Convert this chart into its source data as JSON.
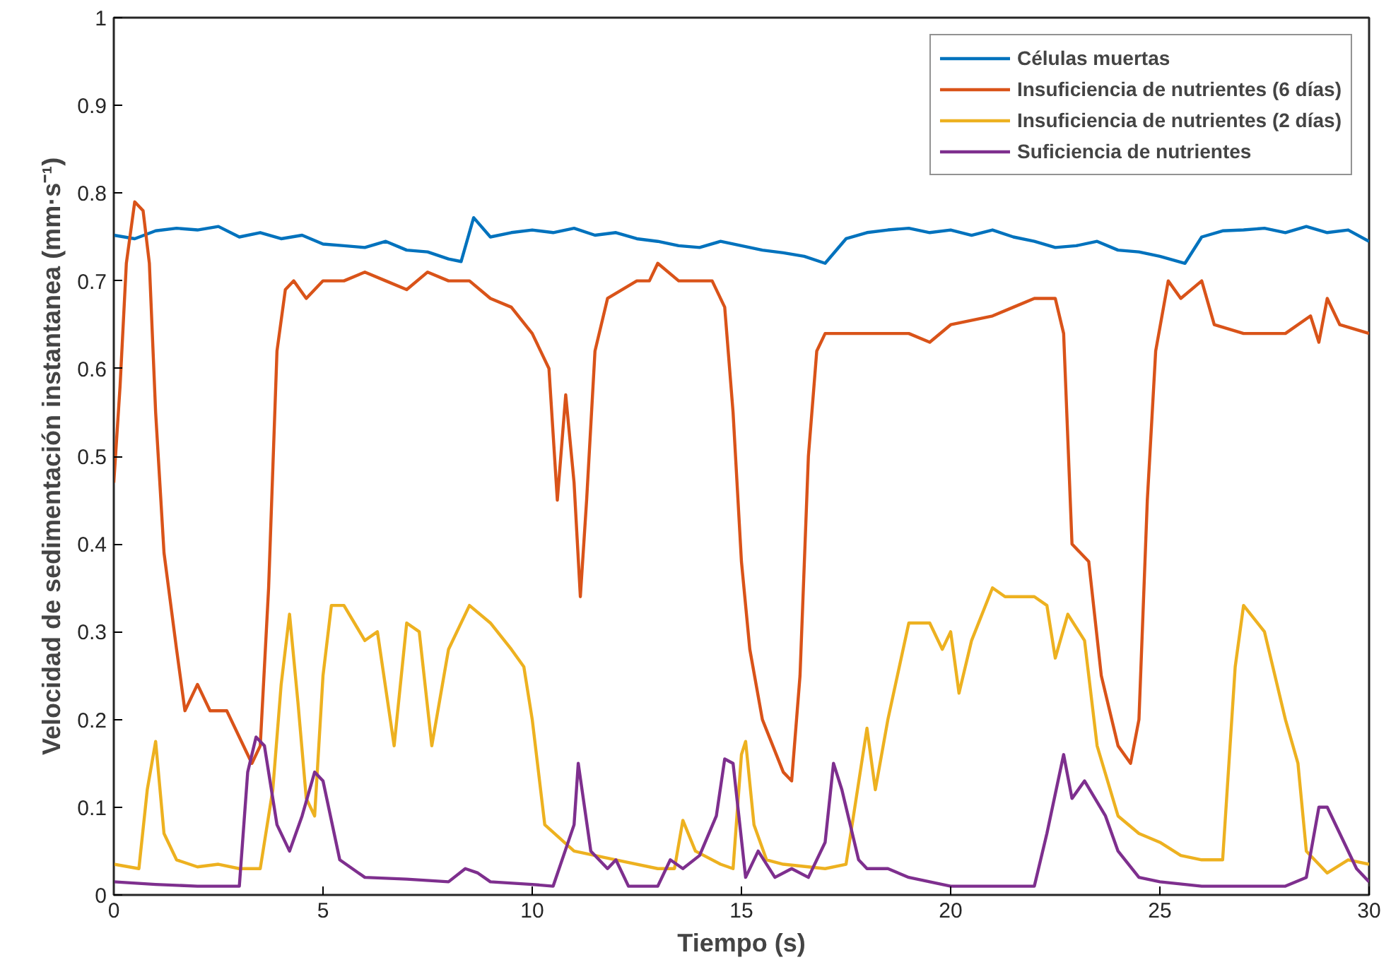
{
  "chart_data": {
    "type": "line",
    "xlabel": "Tiempo (s)",
    "ylabel": "Velocidad de sedimentación instantanea (mm·s⁻¹)",
    "xlim": [
      0,
      30
    ],
    "ylim": [
      0,
      1
    ],
    "xticks": [
      0,
      5,
      10,
      15,
      20,
      25,
      30
    ],
    "yticks": [
      0,
      0.1,
      0.2,
      0.3,
      0.4,
      0.5,
      0.6,
      0.7,
      0.8,
      0.9,
      1
    ],
    "grid": false,
    "legend": "top right",
    "marker": "none",
    "line_style": "solid",
    "series": [
      {
        "name": "Células muertas",
        "color": "#0072bd",
        "x": [
          0,
          0.5,
          1,
          1.5,
          2,
          2.5,
          3,
          3.5,
          4,
          4.5,
          5,
          5.5,
          6,
          6.5,
          7,
          7.5,
          8,
          8.3,
          8.6,
          9,
          9.5,
          10,
          10.5,
          11,
          11.5,
          12,
          12.5,
          13,
          13.5,
          14,
          14.5,
          15,
          15.5,
          16,
          16.5,
          17,
          17.5,
          18,
          18.5,
          19,
          19.5,
          20,
          20.5,
          21,
          21.5,
          22,
          22.5,
          23,
          23.5,
          24,
          24.5,
          25,
          25.6,
          26,
          26.5,
          27,
          27.5,
          28,
          28.5,
          29,
          29.5,
          30
        ],
        "values": [
          0.752,
          0.748,
          0.757,
          0.76,
          0.758,
          0.762,
          0.75,
          0.755,
          0.748,
          0.752,
          0.742,
          0.74,
          0.738,
          0.745,
          0.735,
          0.733,
          0.725,
          0.722,
          0.772,
          0.75,
          0.755,
          0.758,
          0.755,
          0.76,
          0.752,
          0.755,
          0.748,
          0.745,
          0.74,
          0.738,
          0.745,
          0.74,
          0.735,
          0.732,
          0.728,
          0.72,
          0.748,
          0.755,
          0.758,
          0.76,
          0.755,
          0.758,
          0.752,
          0.758,
          0.75,
          0.745,
          0.738,
          0.74,
          0.745,
          0.735,
          0.733,
          0.728,
          0.72,
          0.75,
          0.757,
          0.758,
          0.76,
          0.755,
          0.762,
          0.755,
          0.758,
          0.745
        ]
      },
      {
        "name": "Insuficiencia de nutrientes (6 días)",
        "color": "#d95319",
        "x": [
          0,
          0.15,
          0.3,
          0.5,
          0.7,
          0.85,
          1,
          1.2,
          1.5,
          1.7,
          2,
          2.3,
          2.7,
          3,
          3.3,
          3.5,
          3.7,
          3.9,
          4.1,
          4.3,
          4.6,
          5,
          5.5,
          6,
          6.5,
          7,
          7.5,
          8,
          8.5,
          9,
          9.5,
          10,
          10.4,
          10.6,
          10.8,
          11,
          11.15,
          11.3,
          11.5,
          11.8,
          12.5,
          12.8,
          13,
          13.5,
          14,
          14.3,
          14.6,
          14.8,
          15,
          15.2,
          15.5,
          16,
          16.2,
          16.4,
          16.6,
          16.8,
          17,
          18,
          19,
          19.5,
          20,
          21,
          21.5,
          22,
          22.5,
          22.7,
          22.9,
          23.3,
          23.6,
          24,
          24.3,
          24.5,
          24.7,
          24.9,
          25.2,
          25.5,
          26,
          26.3,
          27,
          28,
          28.6,
          28.8,
          29,
          29.3,
          30
        ],
        "values": [
          0.47,
          0.58,
          0.72,
          0.79,
          0.78,
          0.72,
          0.55,
          0.39,
          0.28,
          0.21,
          0.24,
          0.21,
          0.21,
          0.18,
          0.15,
          0.17,
          0.35,
          0.62,
          0.69,
          0.7,
          0.68,
          0.7,
          0.7,
          0.71,
          0.7,
          0.69,
          0.71,
          0.7,
          0.7,
          0.68,
          0.67,
          0.64,
          0.6,
          0.45,
          0.57,
          0.47,
          0.34,
          0.45,
          0.62,
          0.68,
          0.7,
          0.7,
          0.72,
          0.7,
          0.7,
          0.7,
          0.67,
          0.55,
          0.38,
          0.28,
          0.2,
          0.14,
          0.13,
          0.25,
          0.5,
          0.62,
          0.64,
          0.64,
          0.64,
          0.63,
          0.65,
          0.66,
          0.67,
          0.68,
          0.68,
          0.64,
          0.4,
          0.38,
          0.25,
          0.17,
          0.15,
          0.2,
          0.45,
          0.62,
          0.7,
          0.68,
          0.7,
          0.65,
          0.64,
          0.64,
          0.66,
          0.63,
          0.68,
          0.65,
          0.64
        ]
      },
      {
        "name": "Insuficiencia de nutrientes (2 días)",
        "color": "#edb120",
        "x": [
          0,
          0.6,
          0.8,
          1,
          1.2,
          1.5,
          2,
          2.5,
          3,
          3.5,
          3.8,
          4,
          4.2,
          4.4,
          4.6,
          4.8,
          5,
          5.2,
          5.5,
          6,
          6.3,
          6.7,
          7,
          7.3,
          7.6,
          8,
          8.5,
          9,
          9.5,
          9.8,
          10,
          10.3,
          11,
          12,
          13,
          13.4,
          13.6,
          13.9,
          14.5,
          14.8,
          15,
          15.1,
          15.3,
          15.6,
          16,
          17,
          17.5,
          18,
          18.2,
          18.5,
          19,
          19.5,
          19.8,
          20,
          20.2,
          20.5,
          21,
          21.3,
          22,
          22.3,
          22.5,
          22.8,
          23.2,
          23.5,
          24,
          24.5,
          25,
          25.5,
          26,
          26.5,
          26.8,
          27,
          27.5,
          28,
          28.3,
          28.5,
          29,
          29.5,
          30
        ],
        "values": [
          0.035,
          0.03,
          0.12,
          0.175,
          0.07,
          0.04,
          0.032,
          0.035,
          0.03,
          0.03,
          0.12,
          0.24,
          0.32,
          0.22,
          0.11,
          0.09,
          0.25,
          0.33,
          0.33,
          0.29,
          0.3,
          0.17,
          0.31,
          0.3,
          0.17,
          0.28,
          0.33,
          0.31,
          0.28,
          0.26,
          0.2,
          0.08,
          0.05,
          0.04,
          0.03,
          0.03,
          0.085,
          0.05,
          0.035,
          0.03,
          0.16,
          0.175,
          0.08,
          0.04,
          0.035,
          0.03,
          0.035,
          0.19,
          0.12,
          0.2,
          0.31,
          0.31,
          0.28,
          0.3,
          0.23,
          0.29,
          0.35,
          0.34,
          0.34,
          0.33,
          0.27,
          0.32,
          0.29,
          0.17,
          0.09,
          0.07,
          0.06,
          0.045,
          0.04,
          0.04,
          0.26,
          0.33,
          0.3,
          0.2,
          0.15,
          0.05,
          0.025,
          0.04,
          0.035
        ]
      },
      {
        "name": "Suficiencia de nutrientes",
        "color": "#7e2f8e",
        "x": [
          0,
          1,
          2,
          2.5,
          3,
          3.2,
          3.4,
          3.6,
          3.9,
          4.2,
          4.5,
          4.8,
          5,
          5.4,
          6,
          7,
          8,
          8.4,
          8.7,
          9,
          10,
          10.5,
          11,
          11.1,
          11.4,
          11.8,
          12,
          12.3,
          13,
          13.3,
          13.6,
          14,
          14.4,
          14.6,
          14.8,
          15.1,
          15.4,
          15.8,
          16.2,
          16.6,
          17,
          17.2,
          17.4,
          17.8,
          18,
          18.5,
          19,
          19.5,
          20,
          21,
          22,
          22.3,
          22.7,
          22.9,
          23.2,
          23.7,
          24,
          24.5,
          25,
          26,
          27,
          28,
          28.5,
          28.8,
          29,
          29.3,
          29.7,
          30
        ],
        "values": [
          0.015,
          0.012,
          0.01,
          0.01,
          0.01,
          0.14,
          0.18,
          0.17,
          0.08,
          0.05,
          0.09,
          0.14,
          0.13,
          0.04,
          0.02,
          0.018,
          0.015,
          0.03,
          0.025,
          0.015,
          0.012,
          0.01,
          0.08,
          0.15,
          0.05,
          0.03,
          0.04,
          0.01,
          0.01,
          0.04,
          0.03,
          0.045,
          0.09,
          0.155,
          0.15,
          0.02,
          0.05,
          0.02,
          0.03,
          0.02,
          0.06,
          0.15,
          0.12,
          0.04,
          0.03,
          0.03,
          0.02,
          0.015,
          0.01,
          0.01,
          0.01,
          0.07,
          0.16,
          0.11,
          0.13,
          0.09,
          0.05,
          0.02,
          0.015,
          0.01,
          0.01,
          0.01,
          0.02,
          0.1,
          0.1,
          0.07,
          0.03,
          0.015
        ]
      }
    ]
  }
}
